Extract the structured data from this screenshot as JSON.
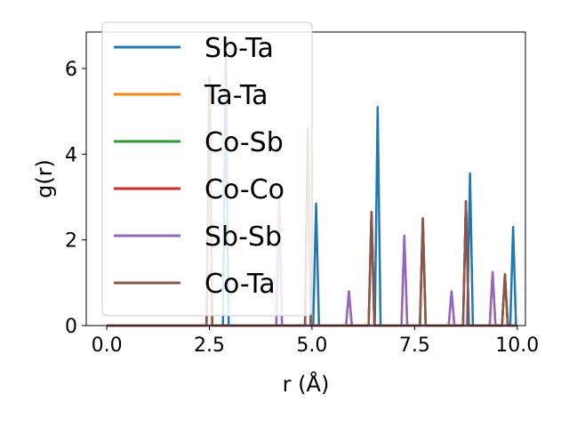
{
  "chart_data": {
    "type": "line",
    "xlabel": "r (Å)",
    "ylabel": "g(r)",
    "xlim": [
      -0.5,
      10.2
    ],
    "ylim": [
      0,
      6.85
    ],
    "xticks": [
      0.0,
      2.5,
      5.0,
      7.5,
      10.0
    ],
    "xtick_labels": [
      "0.0",
      "2.5",
      "5.0",
      "7.5",
      "10.0"
    ],
    "yticks": [
      0,
      2,
      4,
      6
    ],
    "ytick_labels": [
      "0",
      "2",
      "4",
      "6"
    ],
    "legend_position": "upper-left",
    "grid": false,
    "peak_halfwidth": 0.07,
    "series": [
      {
        "name": "Sb-Ta",
        "color": "#1f77b4",
        "peaks": [
          [
            2.9,
            6.3
          ],
          [
            5.1,
            2.85
          ],
          [
            6.6,
            5.1
          ],
          [
            8.85,
            3.55
          ],
          [
            9.9,
            2.3
          ]
        ]
      },
      {
        "name": "Ta-Ta",
        "color": "#ff7f0e",
        "peaks": [
          [
            4.2,
            3.0
          ],
          [
            5.9,
            0.8
          ],
          [
            7.25,
            2.1
          ],
          [
            8.4,
            0.8
          ],
          [
            9.4,
            1.25
          ]
        ]
      },
      {
        "name": "Co-Sb",
        "color": "#2ca02c",
        "peaks": [
          [
            2.5,
            5.8
          ],
          [
            4.9,
            4.6
          ],
          [
            6.45,
            2.65
          ],
          [
            7.7,
            2.5
          ],
          [
            8.75,
            2.9
          ],
          [
            9.7,
            1.2
          ]
        ]
      },
      {
        "name": "Co-Co",
        "color": "#d62728",
        "peaks": [
          [
            2.5,
            5.8
          ],
          [
            4.9,
            4.6
          ],
          [
            6.45,
            2.65
          ],
          [
            7.7,
            2.5
          ],
          [
            8.75,
            2.9
          ],
          [
            9.7,
            1.2
          ]
        ]
      },
      {
        "name": "Sb-Sb",
        "color": "#9467bd",
        "peaks": [
          [
            4.2,
            3.0
          ],
          [
            5.9,
            0.8
          ],
          [
            7.25,
            2.1
          ],
          [
            8.4,
            0.8
          ],
          [
            9.4,
            1.25
          ]
        ]
      },
      {
        "name": "Co-Ta",
        "color": "#8c564b",
        "peaks": [
          [
            2.5,
            5.8
          ],
          [
            4.9,
            4.6
          ],
          [
            6.45,
            2.65
          ],
          [
            7.7,
            2.5
          ],
          [
            8.75,
            2.9
          ],
          [
            9.7,
            1.2
          ]
        ]
      }
    ]
  }
}
